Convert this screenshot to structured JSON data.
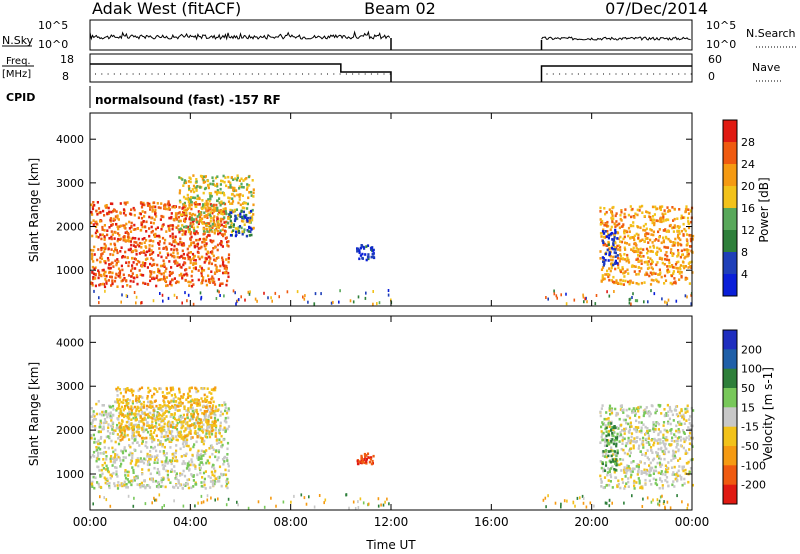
{
  "header": {
    "station": "Adak West (fitACF)",
    "beam": "Beam 02",
    "date": "07/Dec/2014"
  },
  "strips": {
    "nsky_label": "N.Sky",
    "nsearch_label": "N.Search",
    "nsky_ticks": [
      "10^5",
      "10^0"
    ],
    "nsearch_ticks": [
      "10^5",
      "10^0"
    ],
    "freq_label_1": "Freq.",
    "freq_label_2": "[MHz]",
    "freq_ticks": [
      "18",
      "8"
    ],
    "nave_label": "Nave",
    "nave_ticks": [
      "60",
      "0"
    ],
    "cpid_label": "CPID",
    "cpid_text": "normalsound (fast) -157 RF"
  },
  "colors": {
    "power_scale": [
      "#0a1fd8",
      "#1f3fb8",
      "#2e7f3a",
      "#58a85a",
      "#f2c21a",
      "#f59a12",
      "#ef5a10",
      "#e01a12"
    ],
    "velocity_scale": [
      "#e01a12",
      "#ef5a10",
      "#f59a12",
      "#f2c21a",
      "#c8c8c8",
      "#78c85a",
      "#2e7f3a",
      "#1f5fa8",
      "#1f2ebf"
    ]
  },
  "chart_data": [
    {
      "type": "heatmap",
      "name": "power",
      "xlabel": "Time UT",
      "ylabel": "Slant Range [km]",
      "colorbar_label": "Power [dB]",
      "colorbar_ticks": [
        "28",
        "24",
        "20",
        "16",
        "12",
        "8",
        "4"
      ],
      "x_ticks": [
        "00:00",
        "04:00",
        "08:00",
        "12:00",
        "16:00",
        "20:00",
        "00:00"
      ],
      "y_ticks": [
        "4000",
        "3000",
        "2000",
        "1000"
      ],
      "xlim_hours": [
        0,
        24
      ],
      "ylim_km": [
        180,
        4600
      ],
      "data_gap_hours": [
        12,
        18
      ],
      "echo_regions": [
        {
          "t0": 0.0,
          "t1": 5.5,
          "r0": 650,
          "r1": 2600,
          "value_db": 26
        },
        {
          "t0": 3.5,
          "t1": 6.5,
          "r0": 1900,
          "r1": 3200,
          "value_db": 18
        },
        {
          "t0": 5.5,
          "t1": 6.4,
          "r0": 1800,
          "r1": 2400,
          "value_db": 6
        },
        {
          "t0": 10.6,
          "t1": 11.3,
          "r0": 1250,
          "r1": 1600,
          "value_db": 4
        },
        {
          "t0": 20.3,
          "t1": 24.0,
          "r0": 700,
          "r1": 2500,
          "value_db": 22
        },
        {
          "t0": 20.4,
          "t1": 21.0,
          "r0": 1100,
          "r1": 2000,
          "value_db": 4
        }
      ]
    },
    {
      "type": "heatmap",
      "name": "velocity",
      "xlabel": "Time UT",
      "ylabel": "Slant Range [km]",
      "colorbar_label": "Velocity [m s-1]",
      "colorbar_ticks": [
        "200",
        "100",
        "50",
        "15",
        "-15",
        "-50",
        "-100",
        "-200"
      ],
      "x_ticks": [
        "00:00",
        "04:00",
        "08:00",
        "12:00",
        "16:00",
        "20:00",
        "00:00"
      ],
      "y_ticks": [
        "4000",
        "3000",
        "2000",
        "1000"
      ],
      "xlim_hours": [
        0,
        24
      ],
      "ylim_km": [
        180,
        4600
      ],
      "data_gap_hours": [
        12,
        18
      ],
      "echo_regions": [
        {
          "t0": 0.0,
          "t1": 5.5,
          "r0": 700,
          "r1": 2700,
          "value_ms": 0
        },
        {
          "t0": 1.0,
          "t1": 5.0,
          "r0": 1800,
          "r1": 3000,
          "value_ms": -40
        },
        {
          "t0": 10.6,
          "t1": 11.3,
          "r0": 1250,
          "r1": 1500,
          "value_ms": -200
        },
        {
          "t0": 20.3,
          "t1": 24.0,
          "r0": 700,
          "r1": 2600,
          "value_ms": 0
        },
        {
          "t0": 20.4,
          "t1": 21.0,
          "r0": 1100,
          "r1": 2200,
          "value_ms": 60
        }
      ]
    }
  ]
}
